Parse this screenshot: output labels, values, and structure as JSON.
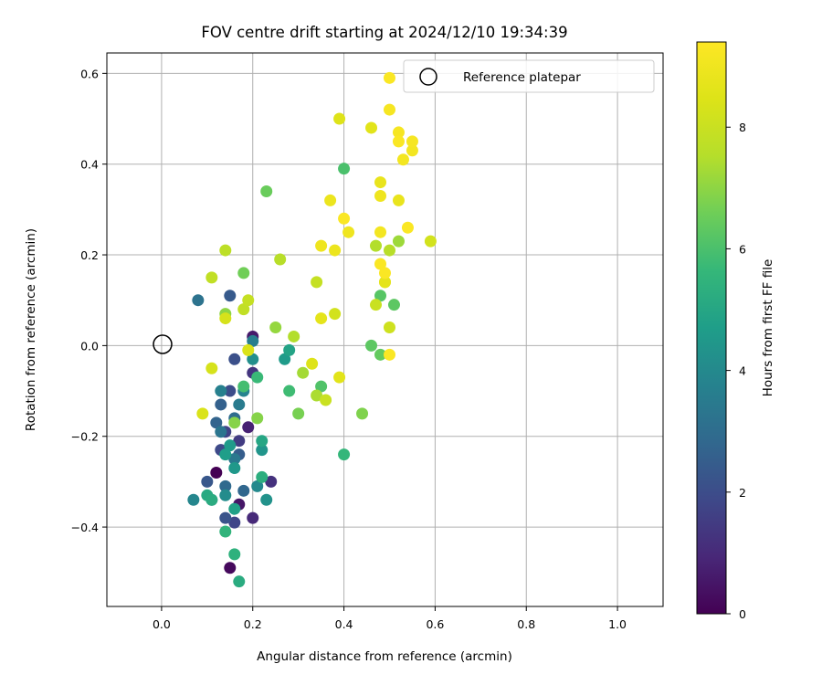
{
  "chart_data": {
    "type": "scatter",
    "title": "FOV centre drift starting at 2024/12/10 19:34:39",
    "xlabel": "Angular distance from reference (arcmin)",
    "ylabel": "Rotation from reference (arcmin)",
    "xlim": [
      -0.12,
      1.1
    ],
    "ylim": [
      -0.575,
      0.645
    ],
    "xticks": [
      0.0,
      0.2,
      0.4,
      0.6,
      0.8,
      1.0
    ],
    "xtick_labels": [
      "0.0",
      "0.2",
      "0.4",
      "0.6",
      "0.8",
      "1.0"
    ],
    "yticks": [
      -0.4,
      -0.2,
      0.0,
      0.2,
      0.4,
      0.6
    ],
    "ytick_labels": [
      "−0.4",
      "−0.2",
      "0.0",
      "0.2",
      "0.4",
      "0.6"
    ],
    "grid": true,
    "colormap": "viridis",
    "colorbar": {
      "label": "Hours from first FF file",
      "range": [
        0,
        9.4
      ],
      "ticks": [
        0,
        2,
        4,
        6,
        8
      ],
      "tick_labels": [
        "0",
        "2",
        "4",
        "6",
        "8"
      ]
    },
    "legend": {
      "placement": "top-right",
      "entries": [
        "Reference platepar"
      ]
    },
    "reference_point": {
      "x": 0.0,
      "y": 0.0
    },
    "points": [
      [
        0.12,
        -0.28,
        0.0
      ],
      [
        0.15,
        -0.49,
        0.2
      ],
      [
        0.17,
        -0.35,
        0.5
      ],
      [
        0.2,
        0.02,
        0.6
      ],
      [
        0.19,
        -0.18,
        0.8
      ],
      [
        0.2,
        -0.38,
        1.0
      ],
      [
        0.24,
        -0.3,
        1.2
      ],
      [
        0.2,
        -0.06,
        1.3
      ],
      [
        0.17,
        -0.21,
        1.5
      ],
      [
        0.14,
        -0.19,
        1.7
      ],
      [
        0.16,
        -0.39,
        1.8
      ],
      [
        0.13,
        -0.23,
        1.9
      ],
      [
        0.15,
        -0.1,
        2.0
      ],
      [
        0.16,
        -0.03,
        2.1
      ],
      [
        0.14,
        -0.38,
        2.2
      ],
      [
        0.1,
        -0.3,
        2.3
      ],
      [
        0.15,
        0.11,
        2.4
      ],
      [
        0.17,
        -0.24,
        2.5
      ],
      [
        0.13,
        -0.13,
        2.6
      ],
      [
        0.12,
        -0.17,
        2.7
      ],
      [
        0.18,
        -0.32,
        2.8
      ],
      [
        0.14,
        -0.31,
        2.9
      ],
      [
        0.16,
        -0.16,
        3.0
      ],
      [
        0.11,
        -0.34,
        3.1
      ],
      [
        0.08,
        0.1,
        3.2
      ],
      [
        0.13,
        -0.19,
        3.3
      ],
      [
        0.16,
        -0.25,
        3.4
      ],
      [
        0.17,
        -0.13,
        3.5
      ],
      [
        0.2,
        0.01,
        3.6
      ],
      [
        0.13,
        -0.1,
        3.7
      ],
      [
        0.18,
        -0.1,
        3.8
      ],
      [
        0.07,
        -0.34,
        3.9
      ],
      [
        0.21,
        -0.31,
        4.0
      ],
      [
        0.14,
        -0.33,
        4.1
      ],
      [
        0.2,
        -0.03,
        4.2
      ],
      [
        0.23,
        -0.34,
        4.3
      ],
      [
        0.22,
        -0.23,
        4.4
      ],
      [
        0.16,
        -0.27,
        4.5
      ],
      [
        0.27,
        -0.03,
        4.6
      ],
      [
        0.15,
        -0.22,
        4.6
      ],
      [
        0.14,
        -0.24,
        4.7
      ],
      [
        0.16,
        -0.36,
        4.8
      ],
      [
        0.28,
        -0.01,
        4.9
      ],
      [
        0.22,
        -0.21,
        5.0
      ],
      [
        0.1,
        -0.33,
        5.1
      ],
      [
        0.17,
        -0.52,
        5.2
      ],
      [
        0.11,
        -0.34,
        5.2
      ],
      [
        0.22,
        -0.29,
        5.3
      ],
      [
        0.16,
        -0.46,
        5.4
      ],
      [
        0.14,
        -0.41,
        5.5
      ],
      [
        0.4,
        -0.24,
        5.6
      ],
      [
        0.21,
        -0.07,
        5.7
      ],
      [
        0.28,
        -0.1,
        5.8
      ],
      [
        0.18,
        -0.09,
        5.9
      ],
      [
        0.4,
        0.39,
        6.0
      ],
      [
        0.35,
        -0.09,
        6.1
      ],
      [
        0.48,
        0.11,
        6.2
      ],
      [
        0.46,
        0.0,
        6.3
      ],
      [
        0.51,
        0.09,
        6.3
      ],
      [
        0.48,
        -0.02,
        6.4
      ],
      [
        0.23,
        0.34,
        6.5
      ],
      [
        0.18,
        0.16,
        6.6
      ],
      [
        0.3,
        -0.15,
        6.7
      ],
      [
        0.44,
        -0.15,
        6.8
      ],
      [
        0.21,
        -0.16,
        6.9
      ],
      [
        0.16,
        -0.17,
        6.9
      ],
      [
        0.14,
        0.07,
        7.0
      ],
      [
        0.25,
        0.04,
        7.1
      ],
      [
        0.52,
        0.23,
        7.2
      ],
      [
        0.31,
        -0.06,
        7.3
      ],
      [
        0.34,
        -0.11,
        7.4
      ],
      [
        0.29,
        0.02,
        7.5
      ],
      [
        0.47,
        0.22,
        7.5
      ],
      [
        0.5,
        0.21,
        7.6
      ],
      [
        0.26,
        0.19,
        7.6
      ],
      [
        0.14,
        0.21,
        7.7
      ],
      [
        0.11,
        0.15,
        7.8
      ],
      [
        0.18,
        0.08,
        7.8
      ],
      [
        0.19,
        0.1,
        7.9
      ],
      [
        0.34,
        0.14,
        7.9
      ],
      [
        0.36,
        -0.12,
        8.0
      ],
      [
        0.47,
        0.09,
        8.0
      ],
      [
        0.5,
        0.04,
        8.1
      ],
      [
        0.49,
        0.14,
        8.1
      ],
      [
        0.38,
        0.07,
        8.2
      ],
      [
        0.59,
        0.23,
        8.2
      ],
      [
        0.14,
        0.06,
        8.3
      ],
      [
        0.11,
        -0.05,
        8.3
      ],
      [
        0.09,
        -0.15,
        8.4
      ],
      [
        0.19,
        -0.01,
        8.4
      ],
      [
        0.33,
        -0.04,
        8.5
      ],
      [
        0.39,
        0.5,
        8.5
      ],
      [
        0.39,
        -0.07,
        8.6
      ],
      [
        0.46,
        0.48,
        8.6
      ],
      [
        0.49,
        0.14,
        8.7
      ],
      [
        0.35,
        0.06,
        8.7
      ],
      [
        0.52,
        0.32,
        8.8
      ],
      [
        0.48,
        0.36,
        8.8
      ],
      [
        0.37,
        0.32,
        8.9
      ],
      [
        0.38,
        0.21,
        8.9
      ],
      [
        0.48,
        0.33,
        9.0
      ],
      [
        0.41,
        0.25,
        9.0
      ],
      [
        0.35,
        0.22,
        9.0
      ],
      [
        0.55,
        0.43,
        9.1
      ],
      [
        0.53,
        0.41,
        9.1
      ],
      [
        0.48,
        0.25,
        9.1
      ],
      [
        0.5,
        0.52,
        9.2
      ],
      [
        0.52,
        0.47,
        9.2
      ],
      [
        0.55,
        0.45,
        9.2
      ],
      [
        0.5,
        0.59,
        9.3
      ],
      [
        0.52,
        0.45,
        9.3
      ],
      [
        0.4,
        0.28,
        9.3
      ],
      [
        0.54,
        0.26,
        9.3
      ],
      [
        0.48,
        0.18,
        9.3
      ],
      [
        0.49,
        0.16,
        9.3
      ],
      [
        0.5,
        -0.02,
        9.3
      ]
    ]
  }
}
